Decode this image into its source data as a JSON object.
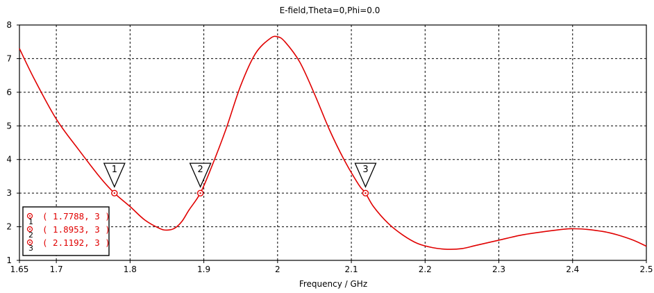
{
  "colors": {
    "curve": "#e00000",
    "grid": "#000000",
    "axis": "#000000",
    "background": "#ffffff"
  },
  "chart_data": {
    "type": "line",
    "title": "E-field,Theta=0,Phi=0.0",
    "xlabel": "Frequency / GHz",
    "ylabel": "",
    "xlim": [
      1.65,
      2.5
    ],
    "ylim": [
      1,
      8
    ],
    "xticks": [
      1.65,
      1.7,
      1.8,
      1.9,
      2.0,
      2.1,
      2.2,
      2.3,
      2.4,
      2.5
    ],
    "xtick_labels": [
      "1.65",
      "1.7",
      "1.8",
      "1.9",
      "2",
      "2.1",
      "2.2",
      "2.3",
      "2.4",
      "2.5"
    ],
    "yticks": [
      1,
      2,
      3,
      4,
      5,
      6,
      7,
      8
    ],
    "ytick_labels": [
      "1",
      "2",
      "3",
      "4",
      "5",
      "6",
      "7",
      "8"
    ],
    "grid": "dashed",
    "series": [
      {
        "x": [
          1.65,
          1.67,
          1.7,
          1.73,
          1.76,
          1.7788,
          1.8,
          1.82,
          1.84,
          1.85,
          1.86,
          1.87,
          1.88,
          1.8953,
          1.91,
          1.93,
          1.95,
          1.97,
          1.99,
          2.0,
          2.01,
          2.03,
          2.05,
          2.07,
          2.09,
          2.11,
          2.1192,
          2.13,
          2.15,
          2.17,
          2.19,
          2.21,
          2.23,
          2.25,
          2.27,
          2.3,
          2.33,
          2.36,
          2.39,
          2.4,
          2.42,
          2.45,
          2.48,
          2.5
        ],
        "y": [
          7.3,
          6.4,
          5.2,
          4.3,
          3.45,
          3.0,
          2.6,
          2.2,
          1.95,
          1.9,
          1.95,
          2.15,
          2.5,
          3.0,
          3.75,
          4.9,
          6.2,
          7.15,
          7.6,
          7.65,
          7.5,
          6.9,
          5.95,
          4.9,
          4.0,
          3.25,
          3.0,
          2.6,
          2.1,
          1.75,
          1.5,
          1.38,
          1.33,
          1.35,
          1.45,
          1.6,
          1.75,
          1.85,
          1.93,
          1.94,
          1.92,
          1.82,
          1.62,
          1.42
        ]
      }
    ],
    "markers": [
      {
        "id": "1",
        "x": 1.7788,
        "y": 3,
        "label": "( 1.7788, 3 )"
      },
      {
        "id": "2",
        "x": 1.8953,
        "y": 3,
        "label": "( 1.8953, 3 )"
      },
      {
        "id": "3",
        "x": 2.1192,
        "y": 3,
        "label": "( 2.1192, 3 )"
      }
    ],
    "legend_position": "bottom-left"
  }
}
